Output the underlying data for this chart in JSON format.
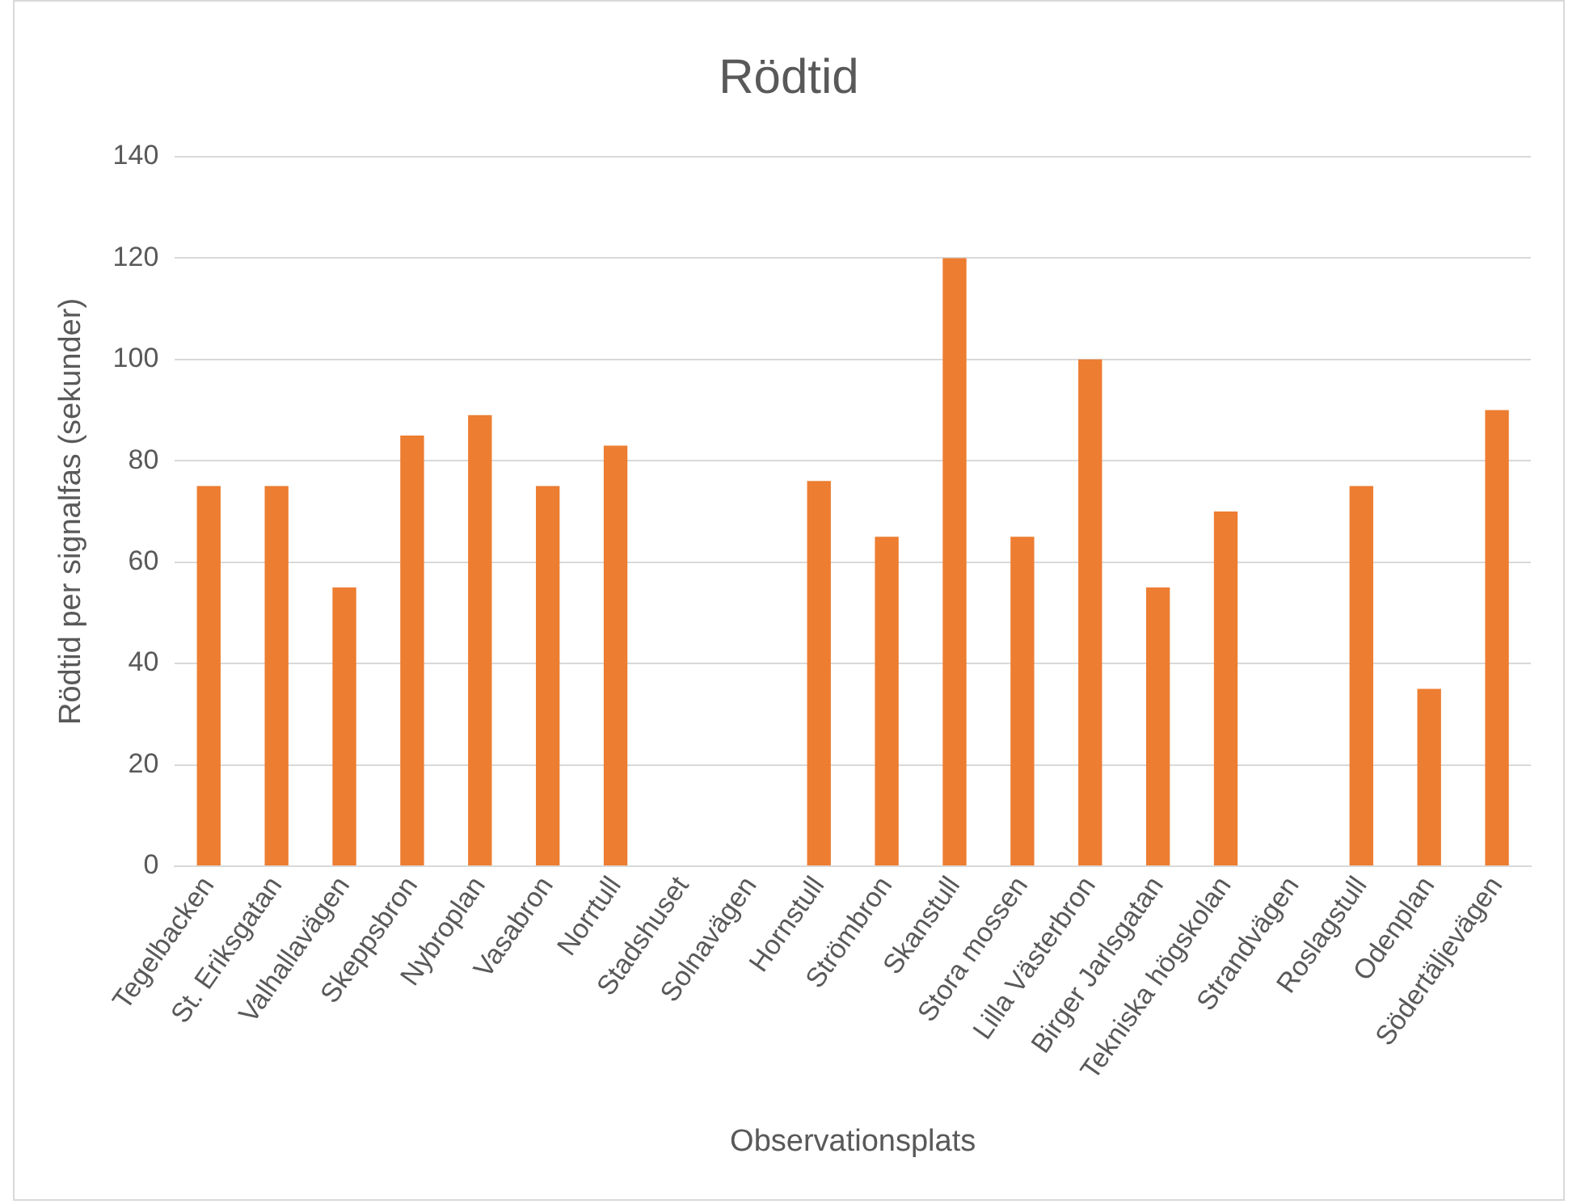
{
  "chart_data": {
    "type": "bar",
    "title": "Rödtid",
    "xlabel": "Observationsplats",
    "ylabel": "Rödtid per signalfas (sekunder)",
    "categories": [
      "Tegelbacken",
      "St. Eriksgatan",
      "Valhallavägen",
      "Skeppsbron",
      "Nybroplan",
      "Vasabron",
      "Norrtull",
      "Stadshuset",
      "Solnavägen",
      "Hornstull",
      "Strömbron",
      "Skanstull",
      "Stora mossen",
      "Lilla Västerbron",
      "Birger Jarlsgatan",
      "Tekniska högskolan",
      "Strandvägen",
      "Roslagstull",
      "Odenplan",
      "Södertäljevägen"
    ],
    "values": [
      75,
      75,
      55,
      85,
      89,
      75,
      83,
      null,
      null,
      76,
      65,
      120,
      65,
      100,
      55,
      70,
      null,
      75,
      35,
      90
    ],
    "color": "#ed7d31",
    "ylim": [
      0,
      140
    ],
    "yticks": [
      0,
      20,
      40,
      60,
      80,
      100,
      120,
      140
    ],
    "grid": "y",
    "legend": false
  }
}
